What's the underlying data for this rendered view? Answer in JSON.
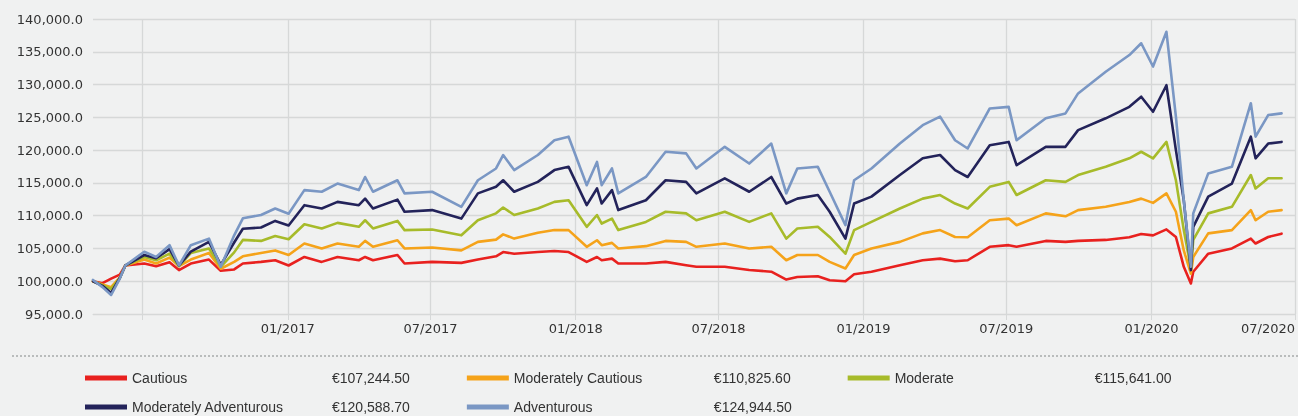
{
  "chart_data": {
    "type": "line",
    "x": [
      "2016-04-29",
      "2016-05-11",
      "2016-05-22",
      "2016-06-02",
      "2016-06-09",
      "2016-07-03",
      "2016-07-18",
      "2016-08-04",
      "2016-08-16",
      "2016-08-31",
      "2016-09-23",
      "2016-10-08",
      "2016-10-25",
      "2016-11-05",
      "2016-11-28",
      "2016-12-16",
      "2017-01-02",
      "2017-01-22",
      "2017-02-13",
      "2017-03-05",
      "2017-04-01",
      "2017-04-09",
      "2017-04-19",
      "2017-05-20",
      "2017-05-29",
      "2017-07-03",
      "2017-08-09",
      "2017-08-30",
      "2017-09-22",
      "2017-10-01",
      "2017-10-15",
      "2017-11-14",
      "2017-12-05",
      "2017-12-23",
      "2018-01-15",
      "2018-01-28",
      "2018-02-03",
      "2018-02-16",
      "2018-02-24",
      "2018-03-31",
      "2018-04-25",
      "2018-05-21",
      "2018-06-03",
      "2018-07-09",
      "2018-08-09",
      "2018-09-06",
      "2018-09-25",
      "2018-10-09",
      "2018-11-04",
      "2018-11-19",
      "2018-12-09",
      "2018-12-20",
      "2019-01-11",
      "2019-02-16",
      "2019-03-17",
      "2019-04-08",
      "2019-04-27",
      "2019-05-13",
      "2019-06-10",
      "2019-07-04",
      "2019-07-14",
      "2019-08-20",
      "2019-09-14",
      "2019-09-30",
      "2019-11-04",
      "2019-12-04",
      "2019-12-19",
      "2020-01-03",
      "2020-01-20",
      "2020-02-01",
      "2020-02-11",
      "2020-02-20",
      "2020-02-23",
      "2020-03-13",
      "2020-04-12",
      "2020-05-06",
      "2020-05-12",
      "2020-05-28",
      "2020-06-14"
    ],
    "series": [
      {
        "name": "Cautious",
        "color": "#e8211f",
        "values": [
          100000,
          99700,
          100400,
          101000,
          102400,
          102700,
          102300,
          102900,
          101700,
          102700,
          103300,
          101600,
          101800,
          102700,
          102950,
          103200,
          102400,
          103700,
          102950,
          103700,
          103200,
          103700,
          103200,
          104000,
          102700,
          102950,
          102800,
          103300,
          103800,
          104450,
          104200,
          104450,
          104600,
          104450,
          102950,
          103700,
          103200,
          103450,
          102700,
          102700,
          102950,
          102450,
          102200,
          102200,
          101700,
          101450,
          100250,
          100650,
          100750,
          100150,
          100000,
          101050,
          101450,
          102450,
          103200,
          103450,
          103050,
          103200,
          105250,
          105500,
          105250,
          106150,
          106000,
          106150,
          106300,
          106700,
          107200,
          107000,
          107900,
          106750,
          102200,
          99650,
          101450,
          104200,
          105000,
          106500,
          105750,
          106750,
          107250
        ]
      },
      {
        "name": "Moderately Cautious",
        "color": "#f5a31a",
        "values": [
          100000,
          99500,
          99100,
          100600,
          102400,
          103300,
          102700,
          103600,
          102300,
          103300,
          104300,
          101900,
          102950,
          103800,
          104300,
          104700,
          104000,
          105750,
          105000,
          105750,
          105250,
          106150,
          105250,
          106250,
          105000,
          105150,
          104700,
          106000,
          106350,
          107150,
          106500,
          107400,
          107800,
          107800,
          105250,
          106250,
          105500,
          105850,
          105000,
          105350,
          106150,
          106000,
          105250,
          105750,
          105000,
          105250,
          103200,
          104000,
          104000,
          102950,
          101950,
          104000,
          105000,
          106000,
          107300,
          107800,
          106750,
          106700,
          109300,
          109550,
          108550,
          110350,
          109900,
          110850,
          111350,
          112100,
          112600,
          111950,
          113400,
          110600,
          104700,
          101150,
          103700,
          107300,
          107800,
          110850,
          109300,
          110600,
          110850
        ]
      },
      {
        "name": "Moderate",
        "color": "#a7bb2a",
        "values": [
          100000,
          99400,
          98800,
          100500,
          102400,
          103700,
          103200,
          104200,
          102300,
          104300,
          105000,
          102200,
          104400,
          106300,
          106150,
          106900,
          106400,
          108700,
          108050,
          108900,
          108300,
          109300,
          108050,
          109200,
          107800,
          107900,
          107000,
          109300,
          110350,
          111250,
          110100,
          111100,
          112100,
          112350,
          108300,
          110100,
          108800,
          109550,
          107800,
          109050,
          110600,
          110350,
          109300,
          110600,
          109050,
          110350,
          106500,
          108050,
          108300,
          106750,
          104200,
          107800,
          109050,
          111100,
          112600,
          113150,
          111850,
          111100,
          114400,
          115150,
          113150,
          115400,
          115150,
          116200,
          117450,
          118750,
          119750,
          118750,
          121250,
          115400,
          107800,
          101950,
          106300,
          110350,
          111350,
          116200,
          114150,
          115700,
          115700
        ]
      },
      {
        "name": "Moderately Adventurous",
        "color": "#23235a",
        "values": [
          100000,
          99300,
          98200,
          100500,
          102400,
          104000,
          103500,
          104900,
          102400,
          104500,
          106000,
          102500,
          105900,
          108000,
          108200,
          109200,
          108500,
          111600,
          111100,
          112100,
          111600,
          112600,
          111100,
          112450,
          110600,
          110850,
          109550,
          113400,
          114400,
          115400,
          113650,
          115150,
          116950,
          117450,
          111600,
          114150,
          111850,
          113900,
          110850,
          112350,
          115400,
          115150,
          113400,
          115700,
          113650,
          115900,
          111850,
          112600,
          113150,
          110600,
          106500,
          111850,
          112900,
          116200,
          118750,
          119250,
          116950,
          115900,
          120750,
          121250,
          117700,
          120500,
          120500,
          123050,
          124850,
          126600,
          128150,
          125850,
          129900,
          120000,
          112350,
          101700,
          108300,
          112900,
          114900,
          122050,
          118750,
          121000,
          121250
        ]
      },
      {
        "name": "Adventurous",
        "color": "#7a97c4",
        "values": [
          100200,
          99100,
          97900,
          100400,
          102400,
          104500,
          103700,
          105500,
          102400,
          105500,
          106500,
          102200,
          107000,
          109600,
          110100,
          111100,
          110300,
          113900,
          113650,
          114900,
          113900,
          115900,
          113650,
          115400,
          113400,
          113650,
          111350,
          115400,
          117200,
          119250,
          116950,
          119250,
          121500,
          122050,
          114650,
          118200,
          114650,
          117200,
          113400,
          115900,
          119750,
          119500,
          117200,
          120500,
          117950,
          121000,
          113400,
          117200,
          117450,
          113650,
          108550,
          115400,
          117200,
          121000,
          123800,
          125100,
          121500,
          120250,
          126350,
          126600,
          121500,
          124850,
          125600,
          128650,
          131950,
          134500,
          136300,
          132750,
          138050,
          125100,
          112350,
          102200,
          110350,
          116450,
          117450,
          127150,
          122050,
          125350,
          125600
        ]
      }
    ],
    "annotations": [
      "€107,244.50",
      "€110,825.60",
      "€115,641.00",
      "€120,588.70",
      "€124,944.50"
    ],
    "xlim": [
      "2016-04-29",
      "2020-07-01"
    ],
    "xticks": [
      {
        "value": "2016-07-01",
        "label": null
      },
      {
        "value": "2017-01-01",
        "label": "01/2017"
      },
      {
        "value": "2017-07-01",
        "label": "07/2017"
      },
      {
        "value": "2018-01-01",
        "label": "01/2018"
      },
      {
        "value": "2018-07-01",
        "label": "07/2018"
      },
      {
        "value": "2019-01-01",
        "label": "01/2019"
      },
      {
        "value": "2019-07-01",
        "label": "07/2019"
      },
      {
        "value": "2020-01-01",
        "label": "01/2020"
      },
      {
        "value": "2020-07-01",
        "label": "07/2020"
      }
    ],
    "ylim": [
      95000,
      140000
    ],
    "yticks": [
      {
        "value": 95000,
        "label": "95,000.0"
      },
      {
        "value": 100000,
        "label": "100,000.0"
      },
      {
        "value": 105000,
        "label": "105,000.0"
      },
      {
        "value": 110000,
        "label": "110,000.0"
      },
      {
        "value": 115000,
        "label": "115,000.0"
      },
      {
        "value": 120000,
        "label": "120,000.0"
      },
      {
        "value": 125000,
        "label": "125,000.0"
      },
      {
        "value": 130000,
        "label": "130,000.0"
      },
      {
        "value": 135000,
        "label": "135,000.0"
      },
      {
        "value": 140000,
        "label": "140,000.0"
      }
    ],
    "grid": true,
    "legend": "bottom",
    "marker": "none",
    "line_style": "solid"
  }
}
